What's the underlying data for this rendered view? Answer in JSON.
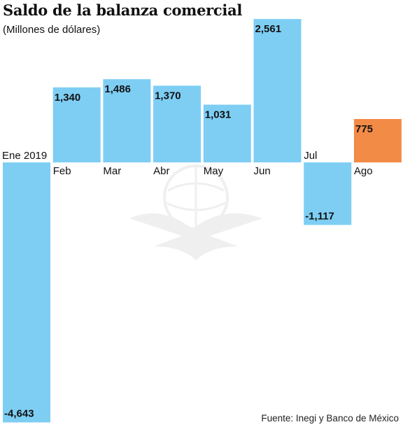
{
  "header": {
    "title": "Saldo de la balanza comercial",
    "subtitle": "(Millones de dólares)"
  },
  "footer": {
    "source": "Fuente: Inegi y Banco de México"
  },
  "colors": {
    "bar": "#7ecef4",
    "highlight": "#f28b45",
    "text": "#111111"
  },
  "chart_data": {
    "type": "bar",
    "categories": [
      "Ene 2019",
      "Feb",
      "Mar",
      "Abr",
      "May",
      "Jun",
      "Jul",
      "Ago"
    ],
    "values": [
      -4643,
      1340,
      1486,
      1370,
      1031,
      2561,
      -1117,
      775
    ],
    "value_labels": [
      "-4,643",
      "1,340",
      "1,486",
      "1,370",
      "1,031",
      "2,561",
      "-1,117",
      "775"
    ],
    "highlight_index": 7,
    "grid": false,
    "legend": "none"
  }
}
